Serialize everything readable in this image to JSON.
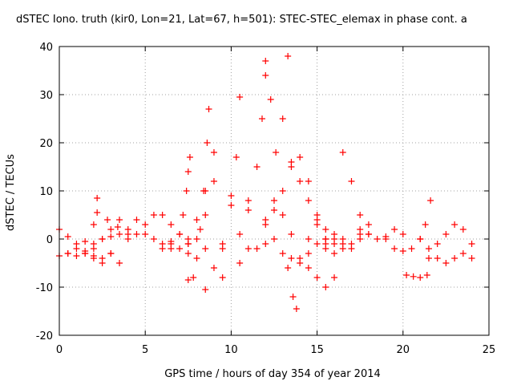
{
  "chart_data": {
    "type": "scatter",
    "title": "dSTEC Iono. truth (kir0, Lon=21, Lat=67, h=501): STEC-STEC_elemax in phase cont. a",
    "xlabel": "GPS time / hours of day 354 of year 2014",
    "ylabel": "dSTEC  / TECUs",
    "xlim": [
      0,
      25
    ],
    "ylim": [
      -20,
      40
    ],
    "x_ticks": [
      0,
      5,
      10,
      15,
      20,
      25
    ],
    "y_ticks": [
      -20,
      -10,
      0,
      10,
      20,
      30,
      40
    ],
    "grid": true,
    "marker": "plus",
    "marker_color": "#ff0000",
    "series": [
      {
        "x": [
          0,
          0.5,
          1,
          1.5,
          2,
          2.2
        ],
        "y": [
          -3.5,
          -3,
          -2,
          -0.5,
          3,
          8.5
        ]
      },
      {
        "x": [
          0,
          0.5,
          1,
          1.5,
          2,
          2.5,
          3
        ],
        "y": [
          2,
          0.5,
          -1,
          -2.5,
          -3.5,
          -4,
          -3
        ]
      },
      {
        "x": [
          0.5,
          1,
          1.5,
          2,
          2.5,
          3,
          3.5
        ],
        "y": [
          -3,
          -3.5,
          -3,
          -2,
          0,
          2,
          4
        ]
      },
      {
        "x": [
          2,
          2.5,
          3,
          3.5,
          4,
          4.5
        ],
        "y": [
          -1,
          0,
          0.5,
          1,
          2,
          4
        ]
      },
      {
        "x": [
          1.5,
          2,
          2.5,
          3,
          3.5
        ],
        "y": [
          -3,
          -4,
          -5,
          -3,
          -5
        ]
      },
      {
        "x": [
          2.2,
          2.8,
          3.4,
          4.0
        ],
        "y": [
          5.5,
          4,
          2.5,
          1
        ]
      },
      {
        "x": [
          4,
          4.5,
          5,
          5.5,
          6,
          6.5,
          7,
          7.5
        ],
        "y": [
          0,
          1,
          3,
          5,
          5,
          3,
          1,
          -1
        ]
      },
      {
        "x": [
          5,
          5.5,
          6,
          6.5,
          7,
          7.5,
          8,
          8.5,
          9
        ],
        "y": [
          1,
          0,
          -1,
          -2,
          -2,
          -1,
          0,
          5,
          12
        ]
      },
      {
        "x": [
          6,
          6.5,
          7,
          7.2,
          7.4,
          7.5,
          7.6
        ],
        "y": [
          -2,
          -1,
          1,
          5,
          10,
          14,
          17
        ]
      },
      {
        "x": [
          7.5,
          7.8,
          8,
          8.2,
          8.4,
          8.6,
          8.7
        ],
        "y": [
          -8.5,
          -8,
          -4,
          2,
          10,
          20,
          27
        ]
      },
      {
        "x": [
          8.5,
          9,
          9.5,
          10,
          10.3,
          10.5
        ],
        "y": [
          -10.5,
          -6,
          -1,
          7,
          17,
          29.5
        ]
      },
      {
        "x": [
          6.5,
          7.5,
          8,
          8.5,
          9
        ],
        "y": [
          -0.5,
          0,
          4,
          10,
          18
        ]
      },
      {
        "x": [
          7.5,
          8.5,
          9.5,
          10.5,
          11,
          11.5,
          11.8,
          12
        ],
        "y": [
          -3,
          -2,
          -2,
          1,
          6,
          15,
          25,
          34
        ]
      },
      {
        "x": [
          9.5,
          10.5,
          11.5,
          12.5,
          13.5,
          14.5,
          15.5,
          16.5,
          17.5
        ],
        "y": [
          -8,
          -5,
          -2,
          0,
          1,
          0,
          -1,
          0,
          2
        ]
      },
      {
        "x": [
          10,
          11,
          12,
          12.5,
          13,
          13.3
        ],
        "y": [
          9,
          8,
          4,
          8,
          25,
          38
        ]
      },
      {
        "x": [
          11,
          12,
          13,
          13.5,
          14,
          14.5,
          15,
          15.5
        ],
        "y": [
          -2,
          -1,
          -3,
          -4,
          -5,
          -3,
          -1,
          0
        ]
      },
      {
        "x": [
          12,
          12.3,
          12.6,
          13,
          13.3,
          13.6,
          13.8
        ],
        "y": [
          37,
          29,
          18,
          5,
          -6,
          -12,
          -14.5
        ]
      },
      {
        "x": [
          12,
          12.5,
          13,
          13.5,
          14,
          14.5,
          15,
          15.5,
          16
        ],
        "y": [
          3,
          6,
          10,
          15,
          17,
          12,
          4,
          -2,
          -3
        ]
      },
      {
        "x": [
          13.5,
          14,
          14.5,
          15,
          15.5,
          16,
          16.5,
          17,
          17.5,
          18
        ],
        "y": [
          16,
          12,
          8,
          3,
          0,
          -1,
          -2,
          -2,
          1,
          3
        ]
      },
      {
        "x": [
          14,
          14.5,
          15,
          15.5,
          16
        ],
        "y": [
          -4,
          -6,
          -8,
          -10,
          -8
        ]
      },
      {
        "x": [
          15,
          15.5,
          16,
          16.5,
          17,
          17.5,
          18,
          19
        ],
        "y": [
          5,
          2,
          0,
          -1,
          -1,
          0,
          1,
          0
        ]
      },
      {
        "x": [
          16,
          16.5,
          17,
          17.5,
          18,
          18.5,
          19,
          19.5,
          20
        ],
        "y": [
          1,
          18,
          12,
          5,
          1,
          0,
          0.5,
          2,
          1
        ]
      },
      {
        "x": [
          19.5,
          20,
          20.5,
          21,
          21.3,
          21.6
        ],
        "y": [
          -2,
          -2.5,
          -2,
          0,
          3,
          8
        ]
      },
      {
        "x": [
          20.2,
          20.6,
          21,
          21.4
        ],
        "y": [
          -7.5,
          -7.8,
          -8,
          -7.5
        ]
      },
      {
        "x": [
          21.5,
          22,
          22.5,
          23,
          23.5,
          24
        ],
        "y": [
          -4,
          -1,
          1,
          3,
          2,
          -1
        ]
      },
      {
        "x": [
          21,
          21.5,
          22,
          22.5,
          23,
          23.5,
          24
        ],
        "y": [
          0,
          -2,
          -4,
          -5,
          -4,
          -3,
          -4
        ]
      }
    ]
  }
}
